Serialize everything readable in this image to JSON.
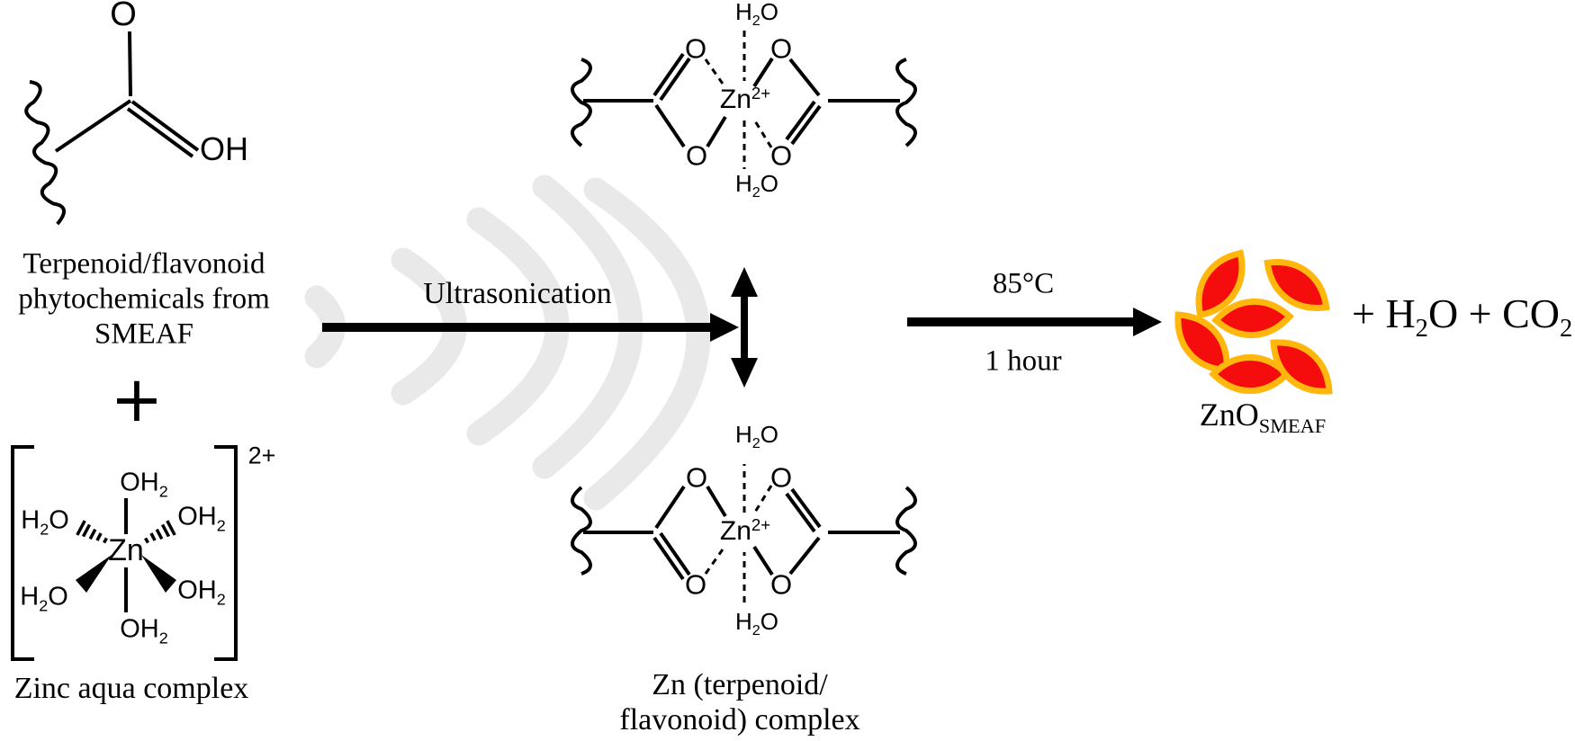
{
  "figure": {
    "background": "#ffffff",
    "ink": "#000000",
    "wave_color": "#e9e9e9"
  },
  "reactants": {
    "phytochemical": {
      "atom_oxygen": "O",
      "atom_hydroxyl": "OH",
      "caption_lines": [
        "Terpenoid/flavonoid",
        "phytochemicals from",
        "SMEAF"
      ]
    },
    "plus_sign": "+",
    "zinc_aqua_complex": {
      "charge": "2+",
      "zinc": "Zn",
      "ligand_axial_top": "OH_{2}",
      "ligand_upper_left": "H_{2}O",
      "ligand_upper_right": "OH_{2}",
      "ligand_lower_left": "H_{2}O",
      "ligand_lower_right": "OH_{2}",
      "ligand_axial_bottom": "OH_{2}",
      "caption": "Zinc aqua complex"
    }
  },
  "step1": {
    "label": "Ultrasonication"
  },
  "intermediate": {
    "complex": {
      "water": "H_{2}O",
      "oxygen": "O",
      "zinc": "Zn^{2+}"
    },
    "caption_lines": [
      "Zn (terpenoid/",
      "flavonoid) complex"
    ]
  },
  "step2": {
    "temperature": "85°C",
    "duration": "1 hour"
  },
  "products": {
    "zno_label": "ZnO_{SMEAF}",
    "byproducts": "+ H_{2}O + CO_{2}",
    "particle_count": 6,
    "particle_fill": "#f50d0d",
    "particle_stroke": "#ffb70d"
  }
}
